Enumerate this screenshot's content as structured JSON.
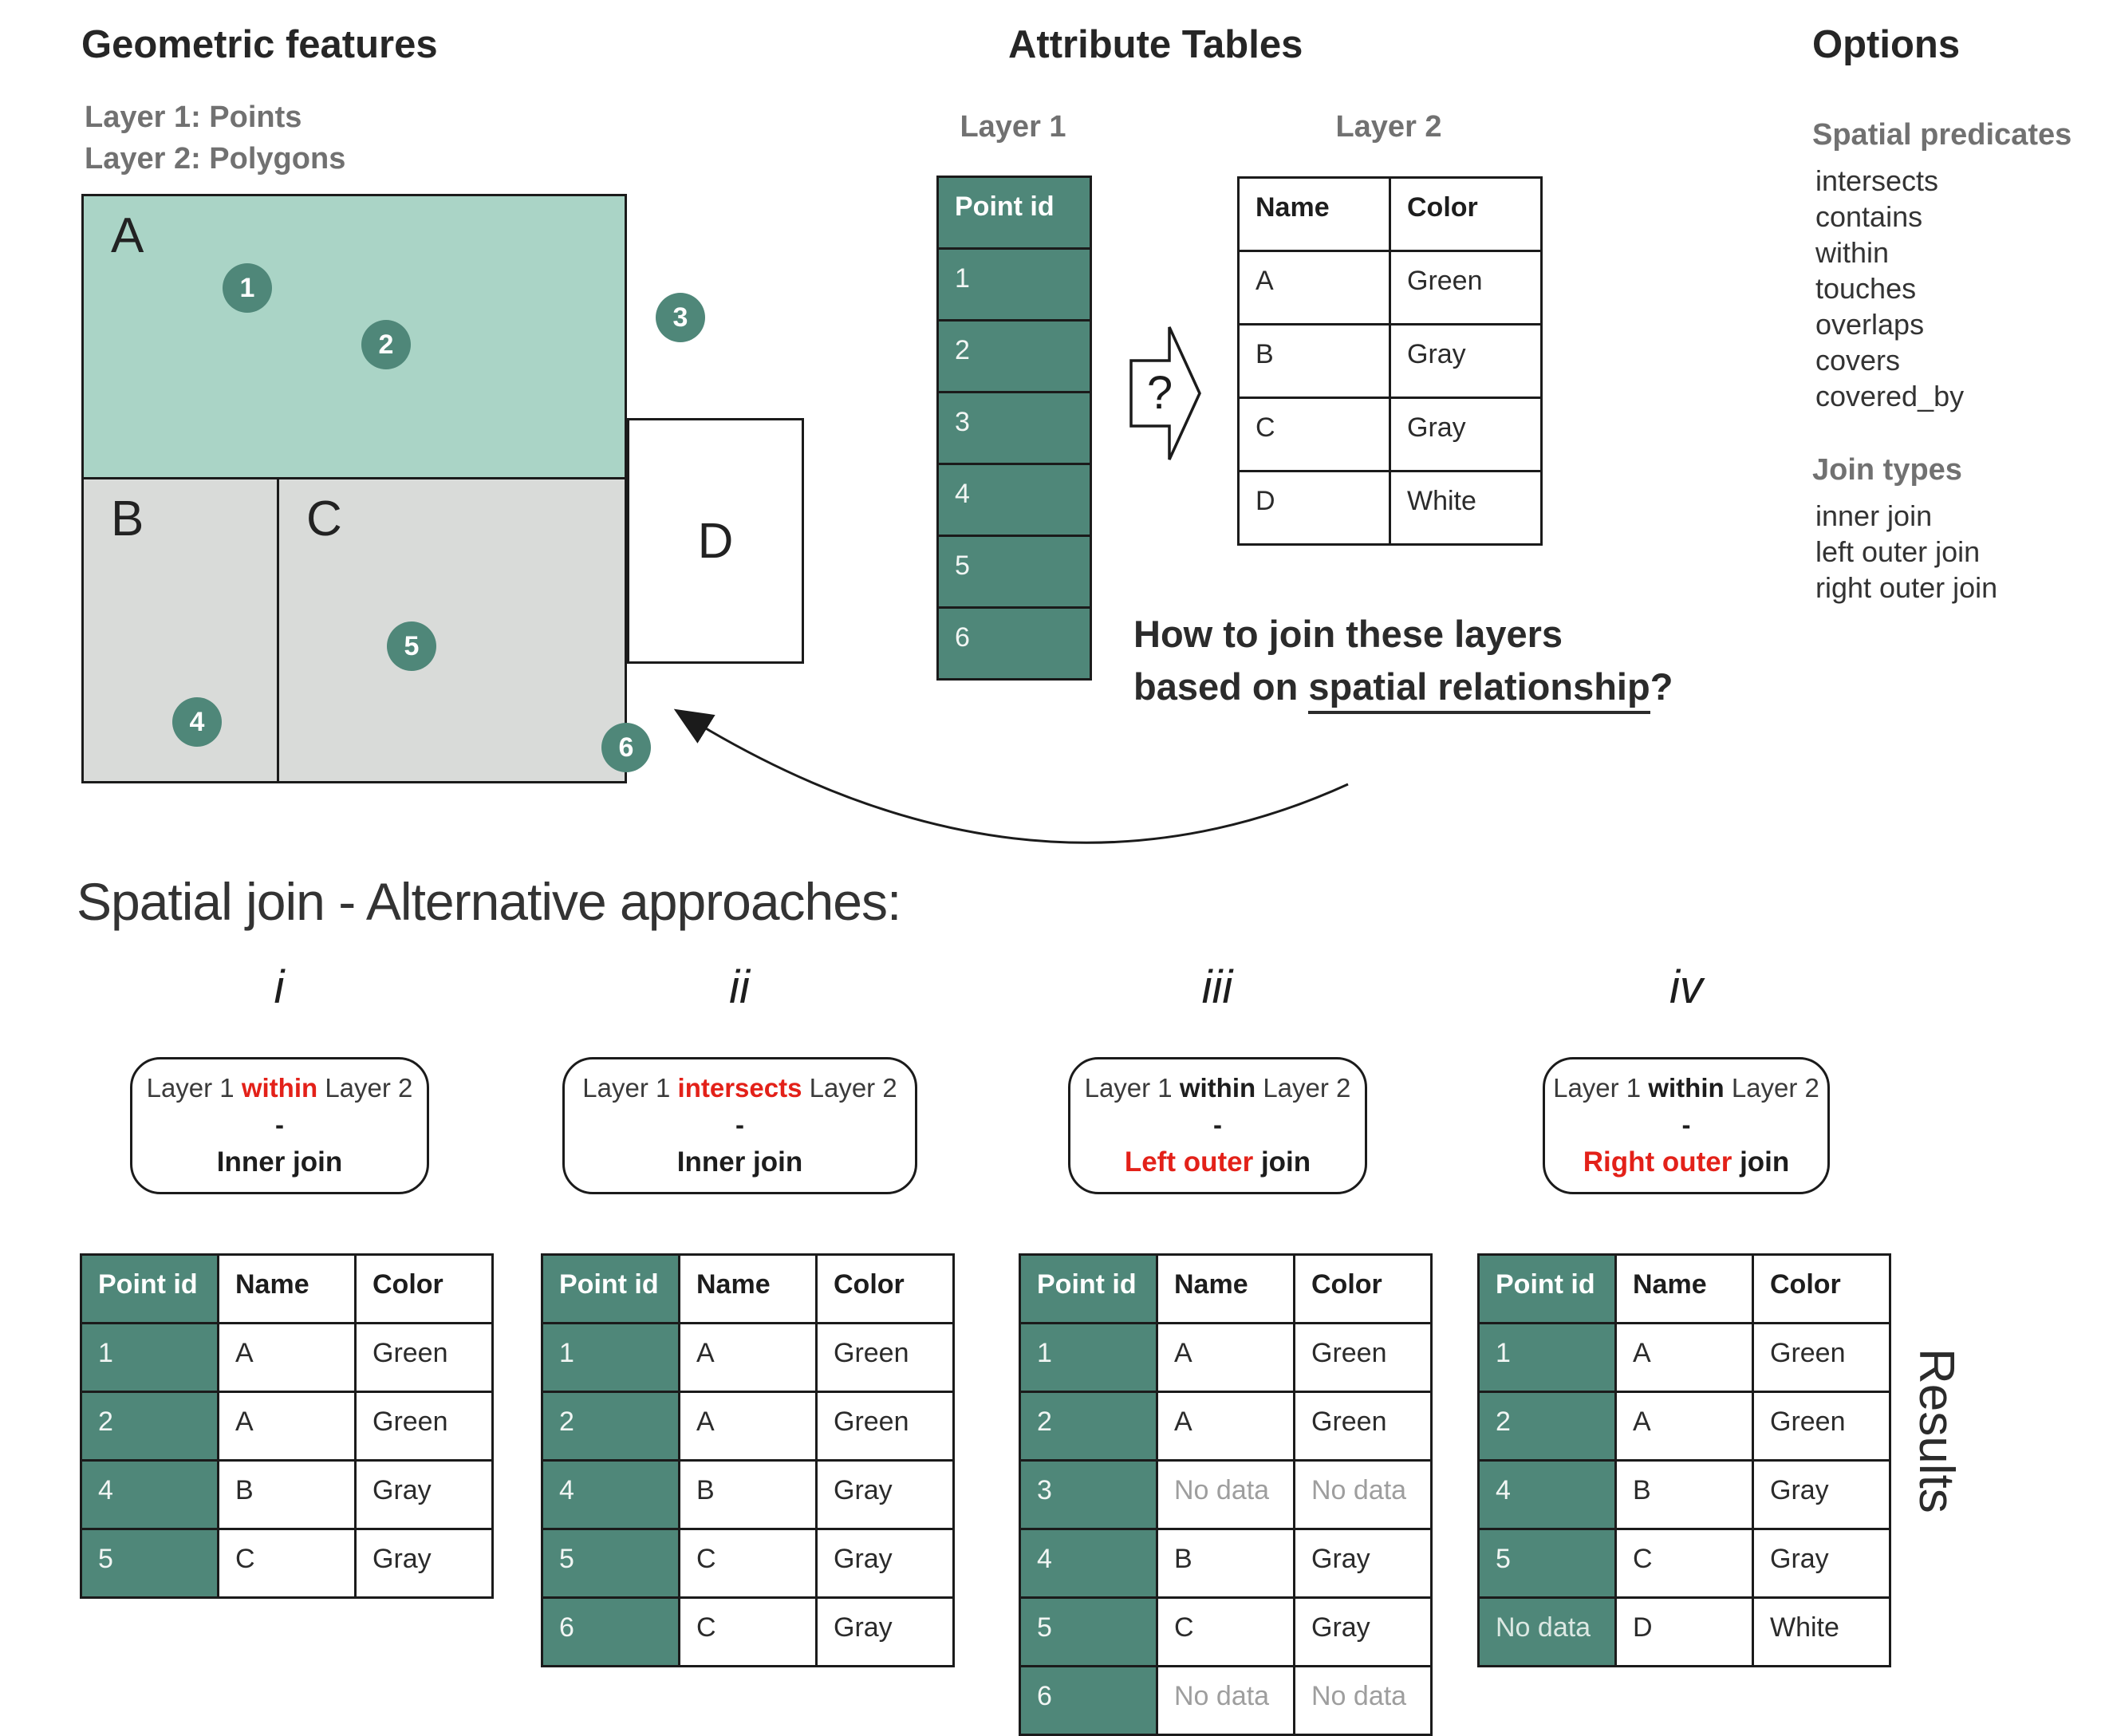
{
  "colors": {
    "teal": "#4f8779",
    "light_green": "#aad4c6",
    "light_gray": "#d9dbd9",
    "border": "#1b1b1b",
    "red": "#e32119",
    "nodata_gray": "#9e9e9e"
  },
  "geometric": {
    "title": "Geometric features",
    "subtitle_line1": "Layer 1: Points",
    "subtitle_line2": "Layer 2: Polygons",
    "polygons": [
      {
        "label": "A",
        "fill": "#aad4c6"
      },
      {
        "label": "B",
        "fill": "#d9dbd9"
      },
      {
        "label": "C",
        "fill": "#d9dbd9"
      },
      {
        "label": "D",
        "fill": "#ffffff"
      }
    ],
    "points": [
      {
        "label": "1"
      },
      {
        "label": "2"
      },
      {
        "label": "3"
      },
      {
        "label": "4"
      },
      {
        "label": "5"
      },
      {
        "label": "6"
      }
    ]
  },
  "attribute": {
    "title": "Attribute Tables",
    "layer1_title": "Layer 1",
    "layer2_title": "Layer 2",
    "question_mark": "?",
    "layer1_table": {
      "columns": [
        "Point id"
      ],
      "rows": [
        [
          "1"
        ],
        [
          "2"
        ],
        [
          "3"
        ],
        [
          "4"
        ],
        [
          "5"
        ],
        [
          "6"
        ]
      ],
      "id_first_col": true
    },
    "layer2_table": {
      "columns": [
        "Name",
        "Color"
      ],
      "rows": [
        [
          "A",
          "Green"
        ],
        [
          "B",
          "Gray"
        ],
        [
          "C",
          "Gray"
        ],
        [
          "D",
          "White"
        ]
      ],
      "id_first_col": false
    },
    "question_line1": "How to join these layers",
    "question_line2_prefix": "based on ",
    "question_line2_underlined": "spatial relationship",
    "question_line2_suffix": "?"
  },
  "options": {
    "title": "Options",
    "predicates_title": "Spatial predicates",
    "predicates": [
      "intersects",
      "contains",
      "within",
      "touches",
      "overlaps",
      "covers",
      "covered_by"
    ],
    "join_types_title": "Join types",
    "join_types": [
      "inner join",
      "left outer join",
      "right outer join"
    ]
  },
  "approaches": {
    "section_title": "Spatial join - Alternative approaches:",
    "results_label": "Results",
    "no_data_label": "No data",
    "items": [
      {
        "numeral": "i",
        "expr_prefix": "Layer 1 ",
        "predicate": "within",
        "predicate_emphasis": "red",
        "expr_suffix": " Layer 2",
        "dash": "-",
        "join_emphasized": "Inner join",
        "join_emphasis": "black",
        "join_rest": "",
        "table": {
          "columns": [
            "Point id",
            "Name",
            "Color"
          ],
          "rows": [
            [
              "1",
              "A",
              "Green"
            ],
            [
              "2",
              "A",
              "Green"
            ],
            [
              "4",
              "B",
              "Gray"
            ],
            [
              "5",
              "C",
              "Gray"
            ]
          ],
          "id_first_col": true
        }
      },
      {
        "numeral": "ii",
        "expr_prefix": "Layer 1 ",
        "predicate": "intersects",
        "predicate_emphasis": "red",
        "expr_suffix": " Layer 2",
        "dash": "-",
        "join_emphasized": "Inner join",
        "join_emphasis": "black",
        "join_rest": "",
        "table": {
          "columns": [
            "Point id",
            "Name",
            "Color"
          ],
          "rows": [
            [
              "1",
              "A",
              "Green"
            ],
            [
              "2",
              "A",
              "Green"
            ],
            [
              "4",
              "B",
              "Gray"
            ],
            [
              "5",
              "C",
              "Gray"
            ],
            [
              "6",
              "C",
              "Gray"
            ]
          ],
          "id_first_col": true
        }
      },
      {
        "numeral": "iii",
        "expr_prefix": "Layer 1 ",
        "predicate": "within",
        "predicate_emphasis": "black",
        "expr_suffix": " Layer 2",
        "dash": "-",
        "join_emphasized": "Left outer",
        "join_emphasis": "red",
        "join_rest": " join",
        "table": {
          "columns": [
            "Point id",
            "Name",
            "Color"
          ],
          "rows": [
            [
              "1",
              "A",
              "Green"
            ],
            [
              "2",
              "A",
              "Green"
            ],
            [
              "3",
              "No data",
              "No data"
            ],
            [
              "4",
              "B",
              "Gray"
            ],
            [
              "5",
              "C",
              "Gray"
            ],
            [
              "6",
              "No data",
              "No data"
            ]
          ],
          "id_first_col": true
        }
      },
      {
        "numeral": "iv",
        "expr_prefix": "Layer 1 ",
        "predicate": "within",
        "predicate_emphasis": "black",
        "expr_suffix": " Layer 2",
        "dash": "-",
        "join_emphasized": "Right outer",
        "join_emphasis": "red",
        "join_rest": " join",
        "table": {
          "columns": [
            "Point id",
            "Name",
            "Color"
          ],
          "rows": [
            [
              "1",
              "A",
              "Green"
            ],
            [
              "2",
              "A",
              "Green"
            ],
            [
              "4",
              "B",
              "Gray"
            ],
            [
              "5",
              "C",
              "Gray"
            ],
            [
              "No data",
              "D",
              "White"
            ]
          ],
          "id_first_col": true
        }
      }
    ]
  }
}
